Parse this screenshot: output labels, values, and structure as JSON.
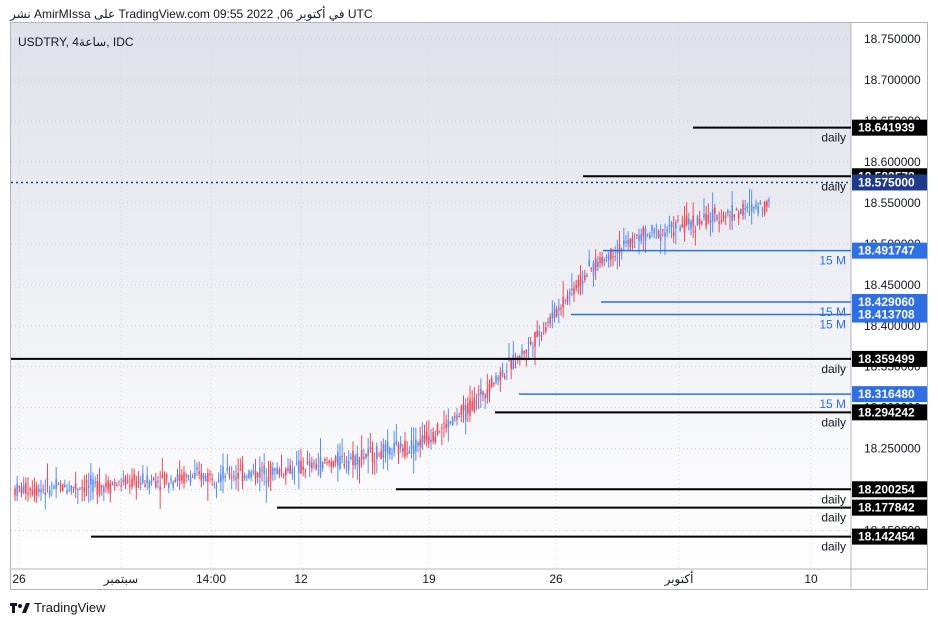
{
  "header": {
    "text": "نشر AmirMIssa على TradingView.com في أكتوبر 06, 2022 09:55 UTC"
  },
  "symbol": {
    "text": "USDTRY, 4ساعة, IDC"
  },
  "footer": {
    "brand": "TradingView"
  },
  "colors": {
    "up": "#5b8def",
    "down": "#ef4a5a",
    "level_blue": "#2f6fe4",
    "level_black": "#000000",
    "current": "#1e3a8a"
  },
  "icons": {
    "logo": "tradingview-logo"
  },
  "chart_data": {
    "type": "candlestick",
    "ylim": [
      18.12,
      18.76
    ],
    "y_ticks": [
      "18.750000",
      "18.700000",
      "18.650000",
      "18.600000",
      "18.550000",
      "18.500000",
      "18.450000",
      "18.400000",
      "18.350000",
      "18.300000",
      "18.250000",
      "18.200000",
      "18.150000"
    ],
    "x_ticks": [
      "26",
      "سبتمبر",
      "14:00",
      "12",
      "19",
      "26",
      "أكتوبر",
      "10"
    ],
    "current_price": "18.575000",
    "levels": [
      {
        "price": 18.641939,
        "label": "18.641939",
        "tf": "daily",
        "color": "black"
      },
      {
        "price": 18.582578,
        "label": "18.582578",
        "tf": "daily",
        "color": "black"
      },
      {
        "price": 18.491747,
        "label": "18.491747",
        "tf": "15 M",
        "color": "blue"
      },
      {
        "price": 18.42906,
        "label": "18.429060",
        "tf": "15 M",
        "color": "blue"
      },
      {
        "price": 18.413708,
        "label": "18.413708",
        "tf": "15 M",
        "color": "blue"
      },
      {
        "price": 18.359499,
        "label": "18.359499",
        "tf": "daily",
        "color": "black"
      },
      {
        "price": 18.31648,
        "label": "18.316480",
        "tf": "15 M",
        "color": "blue"
      },
      {
        "price": 18.294242,
        "label": "18.294242",
        "tf": "daily",
        "color": "black"
      },
      {
        "price": 18.200254,
        "label": "18.200254",
        "tf": "daily",
        "color": "black"
      },
      {
        "price": 18.177842,
        "label": "18.177842",
        "tf": "daily",
        "color": "black"
      },
      {
        "price": 18.142454,
        "label": "18.142454",
        "tf": "daily",
        "color": "black"
      }
    ],
    "trend": [
      [
        0,
        18.2
      ],
      [
        40,
        18.205
      ],
      [
        80,
        18.215
      ],
      [
        110,
        18.22
      ],
      [
        130,
        18.225
      ],
      [
        150,
        18.235
      ],
      [
        170,
        18.245
      ],
      [
        185,
        18.255
      ],
      [
        200,
        18.28
      ],
      [
        210,
        18.3
      ],
      [
        220,
        18.33
      ],
      [
        232,
        18.36
      ],
      [
        245,
        18.4
      ],
      [
        256,
        18.44
      ],
      [
        266,
        18.47
      ],
      [
        276,
        18.49
      ],
      [
        290,
        18.51
      ],
      [
        305,
        18.52
      ],
      [
        320,
        18.53
      ],
      [
        335,
        18.54
      ],
      [
        348,
        18.55
      ]
    ]
  }
}
